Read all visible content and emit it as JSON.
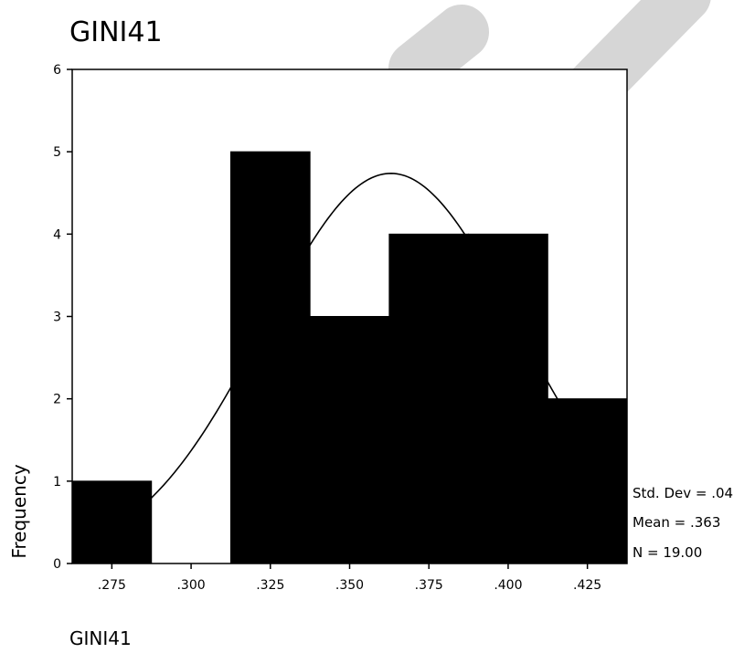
{
  "chart_data": {
    "type": "bar",
    "title": "GINI41",
    "xlabel": "GINI41",
    "ylabel": "Frequency",
    "x_tick_labels": [
      ".275",
      ".300",
      ".325",
      ".350",
      ".375",
      ".400",
      ".425"
    ],
    "x_tick_values": [
      0.275,
      0.3,
      0.325,
      0.35,
      0.375,
      0.4,
      0.425
    ],
    "y_ticks": [
      0,
      1,
      2,
      3,
      4,
      5,
      6
    ],
    "xlim": [
      0.2625,
      0.4375
    ],
    "ylim": [
      0,
      6
    ],
    "bins": [
      {
        "start": 0.2625,
        "end": 0.2875,
        "count": 1
      },
      {
        "start": 0.2875,
        "end": 0.3125,
        "count": 0
      },
      {
        "start": 0.3125,
        "end": 0.3375,
        "count": 5
      },
      {
        "start": 0.3375,
        "end": 0.3625,
        "count": 3
      },
      {
        "start": 0.3625,
        "end": 0.3875,
        "count": 4
      },
      {
        "start": 0.3875,
        "end": 0.4125,
        "count": 4
      },
      {
        "start": 0.4125,
        "end": 0.4375,
        "count": 2
      }
    ],
    "normal_curve": {
      "mean": 0.363,
      "std_dev": 0.04,
      "n": 19.0,
      "bin_width": 0.025
    },
    "stats": {
      "std_dev_label": "Std. Dev = .04",
      "mean_label": "Mean = .363",
      "n_label": "N = 19.00"
    },
    "bar_color": "#000000",
    "grid": false,
    "legend": "none"
  }
}
